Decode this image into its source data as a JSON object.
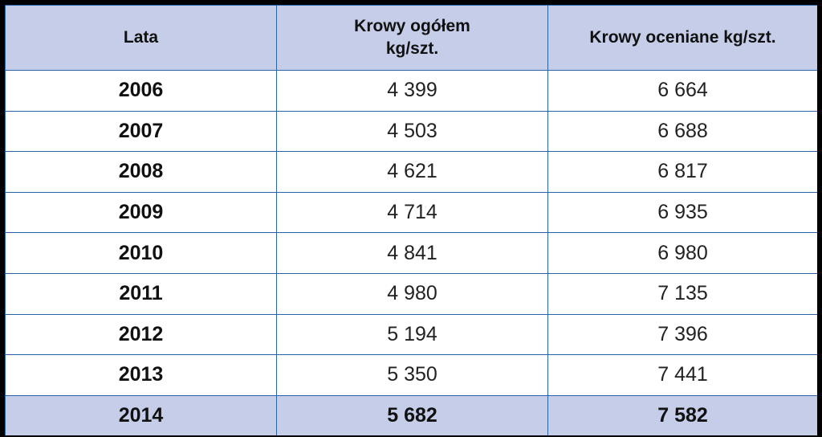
{
  "table": {
    "headers": {
      "col1": "Lata",
      "col2_line1": "Krowy ogółem",
      "col2_line2": "kg/szt.",
      "col3": "Krowy oceniane kg/szt."
    },
    "rows": [
      {
        "year": "2006",
        "total": "4 399",
        "assessed": "6 664"
      },
      {
        "year": "2007",
        "total": "4 503",
        "assessed": "6 688"
      },
      {
        "year": "2008",
        "total": "4 621",
        "assessed": "6 817"
      },
      {
        "year": "2009",
        "total": "4 714",
        "assessed": "6 935"
      },
      {
        "year": "2010",
        "total": "4 841",
        "assessed": "6 980"
      },
      {
        "year": "2011",
        "total": "4 980",
        "assessed": "7 135"
      },
      {
        "year": "2012",
        "total": "5 194",
        "assessed": "7 396"
      },
      {
        "year": "2013",
        "total": "5 350",
        "assessed": "7 441"
      },
      {
        "year": "2014",
        "total": "5 682",
        "assessed": "7 582"
      }
    ]
  },
  "colors": {
    "header_bg": "#c6cde8",
    "border": "#2a64a8",
    "frame": "#000000"
  }
}
